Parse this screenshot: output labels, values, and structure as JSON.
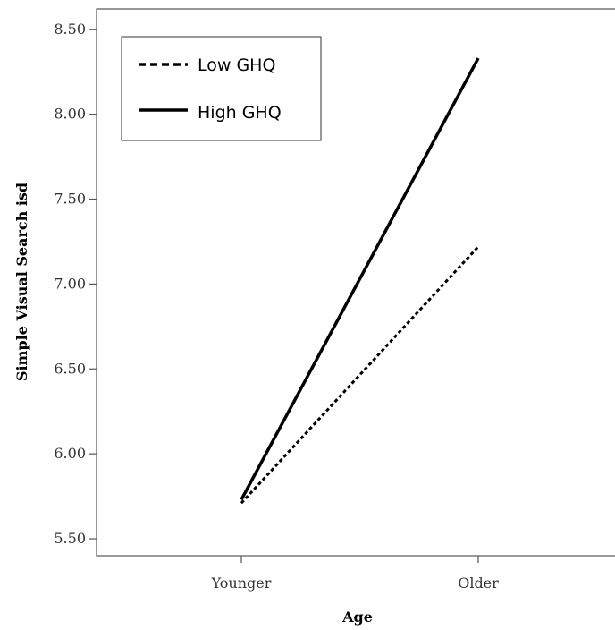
{
  "chart_data": {
    "type": "line",
    "title": "",
    "xlabel": "Age",
    "ylabel": "Simple Visual Search isd",
    "categories": [
      "Younger",
      "Older"
    ],
    "ylim": [
      5.4,
      8.62
    ],
    "yticks": [
      "5.50",
      "6.00",
      "6.50",
      "7.00",
      "7.50",
      "8.00",
      "8.50"
    ],
    "series": [
      {
        "name": "Low GHQ",
        "values": [
          5.71,
          7.22
        ],
        "style": "dashed",
        "color": "#000000"
      },
      {
        "name": "High GHQ",
        "values": [
          5.73,
          8.33
        ],
        "style": "solid",
        "color": "#000000"
      }
    ],
    "grid": false,
    "legend_position": "top-left"
  }
}
